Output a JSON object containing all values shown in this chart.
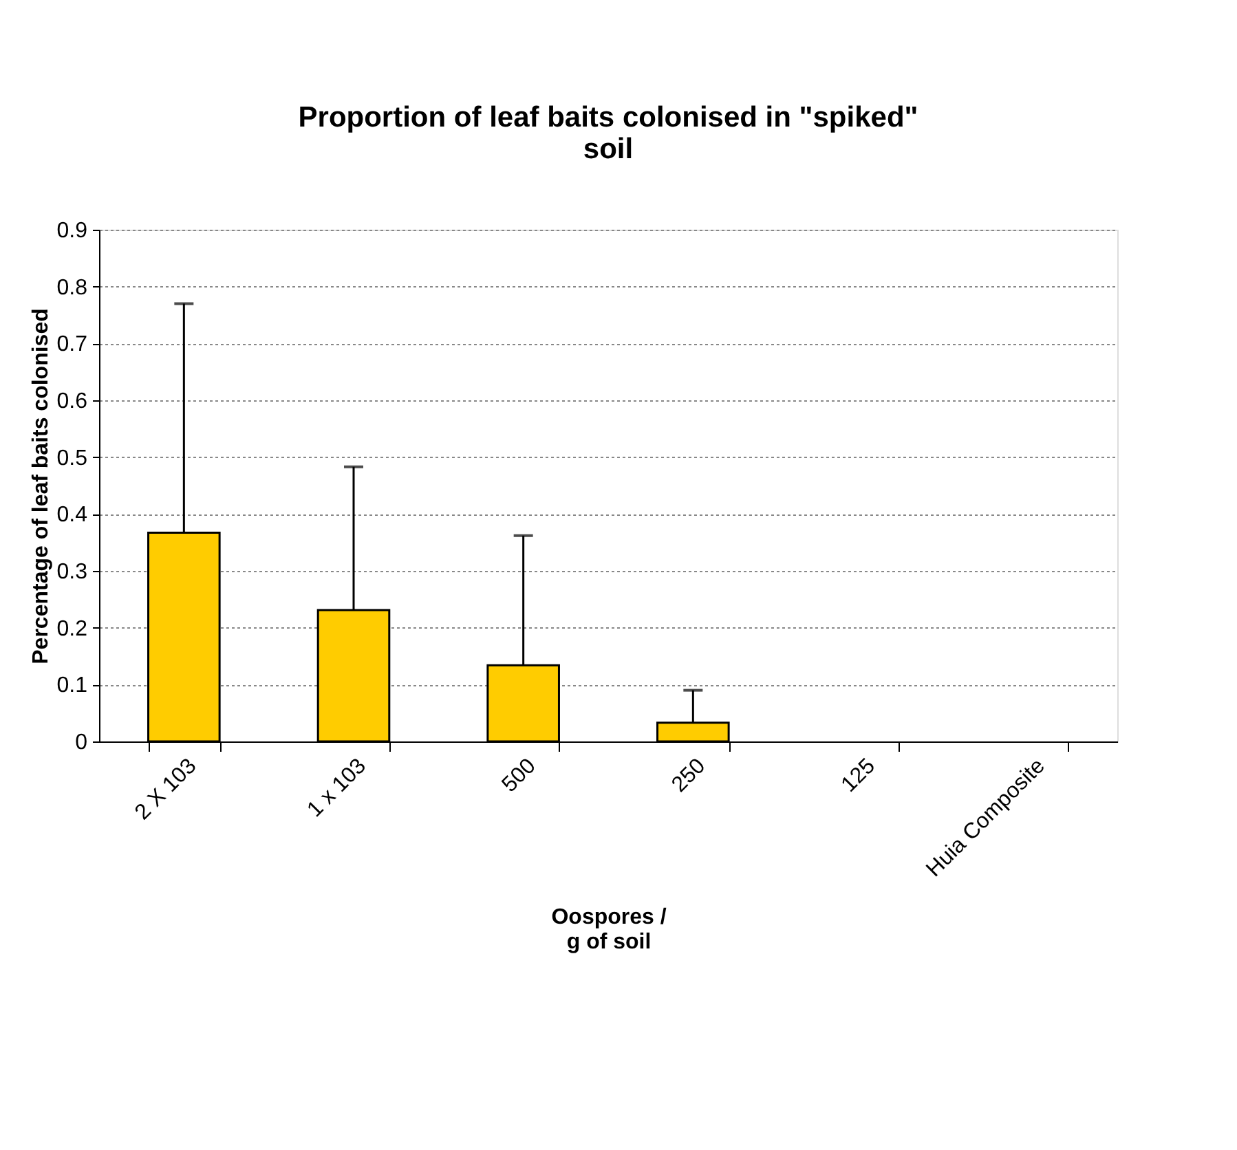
{
  "chart_data": {
    "type": "bar",
    "title": [
      "Proportion of leaf baits colonised in \"spiked\"",
      "soil"
    ],
    "xlabel": [
      "Oospores /",
      "g of soil"
    ],
    "ylabel": "Percentage of leaf baits colonised",
    "categories": [
      "2 X 103",
      "1 x 103",
      "500",
      "250",
      "125",
      "Huia Composite"
    ],
    "values": [
      0.367,
      0.231,
      0.134,
      0.033,
      0,
      0
    ],
    "errors": [
      [
        0.367,
        0.77
      ],
      [
        0.231,
        0.483
      ],
      [
        0.134,
        0.362
      ],
      [
        0.033,
        0.09
      ],
      null,
      null
    ],
    "color": "#ffcc00",
    "ylim": [
      0,
      0.9
    ],
    "yticks": [
      0,
      0.1,
      0.2,
      0.3,
      0.4,
      0.5,
      0.6,
      0.7,
      0.8,
      0.9
    ],
    "grid": "y"
  }
}
